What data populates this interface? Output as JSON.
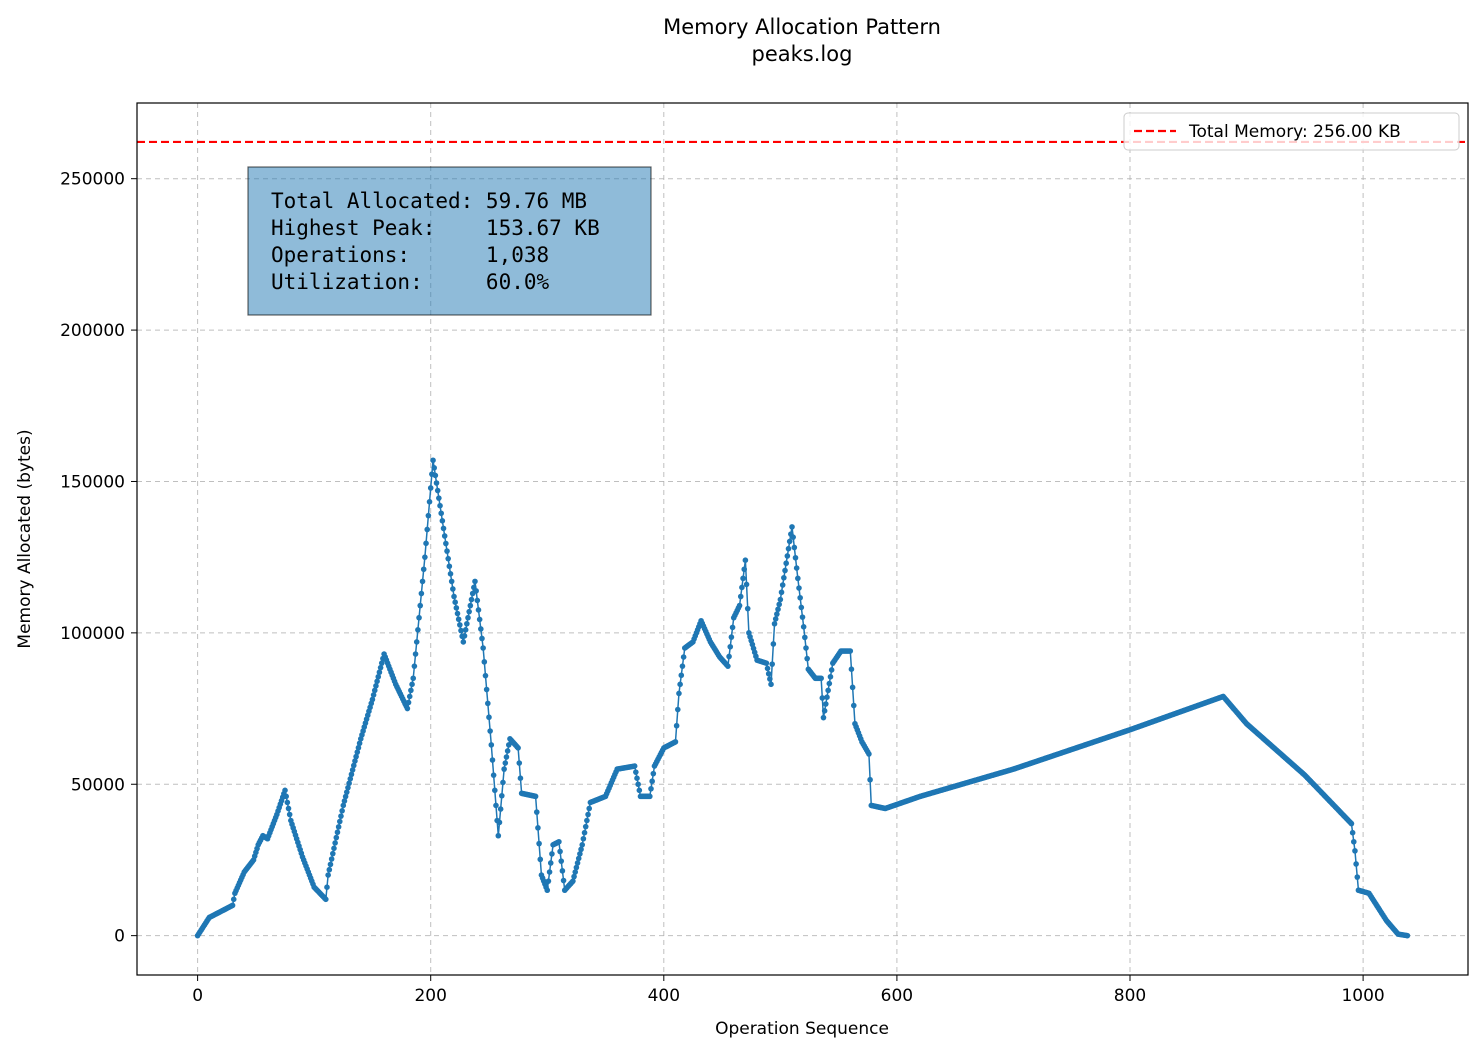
{
  "chart_data": {
    "type": "line",
    "title": "Memory Allocation Pattern",
    "subtitle": "peaks.log",
    "xlabel": "Operation Sequence",
    "ylabel": "Memory Allocated (bytes)",
    "xlim": [
      -52,
      1090
    ],
    "ylim": [
      -13000,
      275000
    ],
    "xticks": [
      0,
      200,
      400,
      600,
      800,
      1000
    ],
    "yticks": [
      0,
      50000,
      100000,
      150000,
      200000,
      250000
    ],
    "grid": true,
    "legend": {
      "placement": "top-right",
      "entries": [
        "Total Memory: 256.00 KB"
      ]
    },
    "reference_line": {
      "label": "Total Memory: 256.00 KB",
      "y": 262144,
      "color": "#ff0000",
      "style": "dashed"
    },
    "series_color": "#1f77b4",
    "stats_box": {
      "placement": "top-left",
      "lines": [
        "Total Allocated: 59.76 MB",
        "Highest Peak:    153.67 KB",
        "Operations:      1,038",
        "Utilization:     60.0%"
      ]
    },
    "series": [
      {
        "keypoints": [
          [
            0,
            0
          ],
          [
            5,
            3000
          ],
          [
            10,
            6000
          ],
          [
            20,
            8000
          ],
          [
            30,
            10000
          ],
          [
            32,
            14000
          ],
          [
            40,
            21000
          ],
          [
            48,
            25000
          ],
          [
            52,
            30000
          ],
          [
            56,
            33000
          ],
          [
            60,
            32000
          ],
          [
            68,
            40000
          ],
          [
            75,
            48000
          ],
          [
            80,
            38000
          ],
          [
            90,
            26000
          ],
          [
            100,
            16000
          ],
          [
            110,
            12000
          ],
          [
            112,
            20000
          ],
          [
            125,
            43000
          ],
          [
            140,
            65000
          ],
          [
            150,
            78000
          ],
          [
            160,
            93000
          ],
          [
            170,
            83000
          ],
          [
            180,
            75000
          ],
          [
            185,
            85000
          ],
          [
            195,
            125000
          ],
          [
            202,
            157000
          ],
          [
            210,
            137000
          ],
          [
            220,
            112000
          ],
          [
            228,
            97000
          ],
          [
            238,
            117000
          ],
          [
            245,
            95000
          ],
          [
            252,
            63000
          ],
          [
            258,
            33000
          ],
          [
            263,
            55000
          ],
          [
            268,
            65000
          ],
          [
            275,
            62000
          ],
          [
            278,
            47000
          ],
          [
            290,
            46000
          ],
          [
            295,
            20000
          ],
          [
            300,
            15000
          ],
          [
            305,
            30000
          ],
          [
            310,
            31000
          ],
          [
            315,
            15000
          ],
          [
            322,
            18000
          ],
          [
            330,
            30000
          ],
          [
            337,
            44000
          ],
          [
            350,
            46000
          ],
          [
            360,
            55000
          ],
          [
            375,
            56000
          ],
          [
            380,
            46000
          ],
          [
            388,
            46000
          ],
          [
            392,
            56000
          ],
          [
            400,
            62000
          ],
          [
            410,
            64000
          ],
          [
            413,
            80000
          ],
          [
            418,
            95000
          ],
          [
            425,
            97000
          ],
          [
            432,
            104000
          ],
          [
            440,
            97000
          ],
          [
            448,
            92000
          ],
          [
            455,
            89000
          ],
          [
            460,
            105000
          ],
          [
            465,
            109000
          ],
          [
            470,
            124000
          ],
          [
            473,
            100000
          ],
          [
            480,
            91000
          ],
          [
            488,
            90000
          ],
          [
            492,
            83000
          ],
          [
            495,
            103000
          ],
          [
            500,
            111000
          ],
          [
            510,
            135000
          ],
          [
            515,
            118000
          ],
          [
            520,
            102000
          ],
          [
            524,
            88000
          ],
          [
            530,
            85000
          ],
          [
            535,
            85000
          ],
          [
            537,
            72000
          ],
          [
            545,
            90000
          ],
          [
            552,
            94000
          ],
          [
            560,
            94000
          ],
          [
            564,
            70000
          ],
          [
            570,
            64000
          ],
          [
            576,
            60000
          ],
          [
            578,
            43000
          ],
          [
            590,
            42000
          ],
          [
            620,
            46000
          ],
          [
            700,
            55000
          ],
          [
            800,
            68000
          ],
          [
            880,
            79000
          ],
          [
            900,
            70000
          ],
          [
            950,
            53000
          ],
          [
            985,
            39000
          ],
          [
            990,
            37000
          ],
          [
            993,
            28000
          ],
          [
            996,
            15000
          ],
          [
            1005,
            14000
          ],
          [
            1010,
            11000
          ],
          [
            1020,
            5000
          ],
          [
            1030,
            500
          ],
          [
            1038,
            0
          ]
        ]
      }
    ]
  }
}
